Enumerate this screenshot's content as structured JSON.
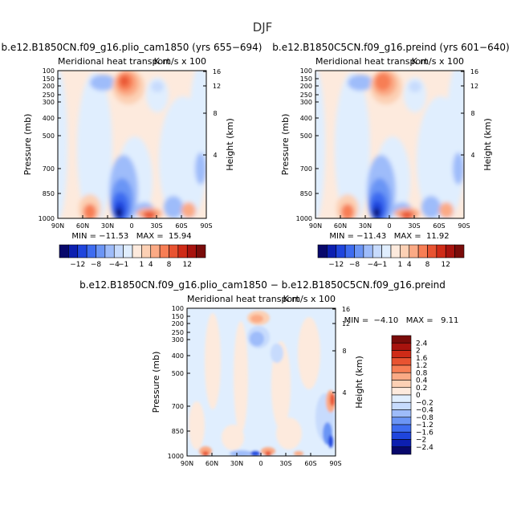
{
  "figure": {
    "title": "DJF",
    "diff_title": "b.e12.B1850CN.f09_g16.plio_cam1850 − b.e12.B1850C5CN.f09_g16.preind"
  },
  "chart_data": [
    {
      "type": "heatmap",
      "title": "b.e12.B1850CN.f09_g16.plio_cam1850 (yrs 655−694)",
      "subtitle": "Meridional heat transport",
      "units": "K m/s x 100",
      "ylabel": "Pressure (mb)",
      "ylabel_right": "Height (km)",
      "x_ticks": [
        "90N",
        "60N",
        "30N",
        "0",
        "30S",
        "60S",
        "90S"
      ],
      "y_ticks": [
        1000,
        850,
        700,
        500,
        400,
        300,
        250,
        200,
        150,
        100
      ],
      "height_ticks": [
        4,
        8,
        12,
        16
      ],
      "stats": "MIN = −11.53   MAX =  15.94",
      "min": -11.53,
      "max": 15.94
    },
    {
      "type": "heatmap",
      "title": "b.e12.B1850C5CN.f09_g16.preind (yrs 601−640)",
      "subtitle": "Meridional heat transport",
      "units": "K m/s x 100",
      "ylabel": "Pressure (mb)",
      "ylabel_right": "Height (km)",
      "x_ticks": [
        "90N",
        "60N",
        "30N",
        "0",
        "30S",
        "60S",
        "90S"
      ],
      "y_ticks": [
        1000,
        850,
        700,
        500,
        400,
        300,
        250,
        200,
        150,
        100
      ],
      "height_ticks": [
        4,
        8,
        12,
        16
      ],
      "stats": "MIN = −11.43   MAX =  11.92",
      "min": -11.43,
      "max": 11.92
    },
    {
      "type": "heatmap",
      "title": "",
      "subtitle": "Meridional heat transport",
      "units": "K m/s x 100",
      "ylabel": "Pressure (mb)",
      "ylabel_right": "Height (km)",
      "x_ticks": [
        "90N",
        "60N",
        "30N",
        "0",
        "30S",
        "60S",
        "90S"
      ],
      "y_ticks": [
        1000,
        850,
        700,
        500,
        400,
        300,
        250,
        200,
        150,
        100
      ],
      "height_ticks": [
        4,
        8,
        12,
        16
      ],
      "stats": "MIN =  −4.10   MAX =   9.11",
      "min": -4.1,
      "max": 9.11
    }
  ],
  "colorbar_main": {
    "labels": [
      "−12",
      "−8",
      "−4",
      "−1",
      "1",
      "4",
      "8",
      "12"
    ],
    "colors": [
      "#08086b",
      "#0c1fb0",
      "#1f45dd",
      "#3e6cf0",
      "#6b95f5",
      "#9ebcfa",
      "#c7dbfd",
      "#e0eefe",
      "#fdeadd",
      "#fcd0b4",
      "#fbaa85",
      "#f77e55",
      "#e85331",
      "#cf2b17",
      "#a8130e",
      "#7a0c0a"
    ]
  },
  "colorbar_diff": {
    "labels": [
      "2.4",
      "2",
      "1.6",
      "1.2",
      "0.8",
      "0.4",
      "0.2",
      "0",
      "−0.2",
      "−0.4",
      "−0.8",
      "−1.2",
      "−1.6",
      "−2",
      "−2.4"
    ],
    "colors": [
      "#7a0c0a",
      "#a8130e",
      "#cf2b17",
      "#e85331",
      "#f77e55",
      "#fbaa85",
      "#fcd0b4",
      "#fdeadd",
      "#e0eefe",
      "#c7dbfd",
      "#9ebcfa",
      "#6b95f5",
      "#3e6cf0",
      "#1f45dd",
      "#0c1fb0",
      "#08086b"
    ]
  }
}
